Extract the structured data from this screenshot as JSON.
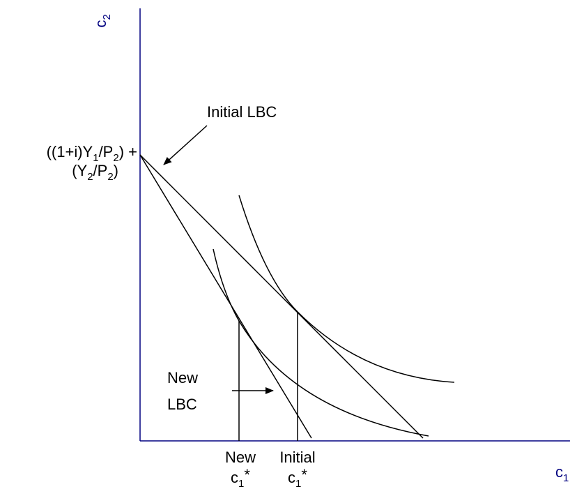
{
  "axes": {
    "y_label": {
      "base": "c",
      "sub": "2"
    },
    "x_label": {
      "base": "c",
      "sub": "1"
    }
  },
  "intercept_label": {
    "line1": [
      "((1+i)Y",
      "1",
      "/P",
      "2",
      ") +"
    ],
    "line2": [
      "(Y",
      "2",
      "/P",
      "2",
      ")"
    ]
  },
  "initial_lbc": "Initial LBC",
  "new_lbc": [
    "New",
    "LBC"
  ],
  "new_c1": {
    "word": "New",
    "base": "c",
    "sub": "1",
    "sup": "*"
  },
  "initial_c1": {
    "word": "Initial",
    "base": "c",
    "sub": "1",
    "sup": "*"
  }
}
